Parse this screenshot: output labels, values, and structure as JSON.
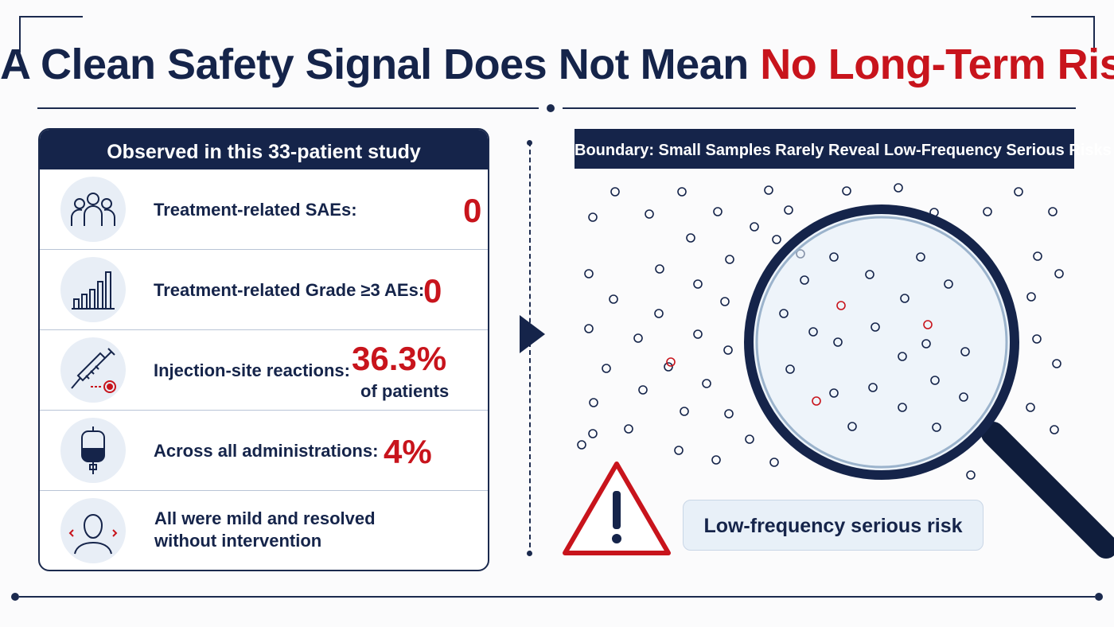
{
  "title": {
    "main": "A Clean Safety Signal Does Not Mean ",
    "accent": "No Long-Term Risk"
  },
  "left_panel": {
    "header": "Observed in this 33-patient study",
    "rows": [
      {
        "icon": "people-icon",
        "label": "Treatment-related SAEs:",
        "value": "0"
      },
      {
        "icon": "bar-chart-icon",
        "label": "Treatment-related Grade ≥3 AEs:",
        "value": "0"
      },
      {
        "icon": "syringe-icon",
        "label": "Injection-site reactions:",
        "value": "36.3%",
        "sub": "of patients"
      },
      {
        "icon": "iv-bag-icon",
        "label": "Across all administrations:",
        "value": "4%"
      },
      {
        "icon": "person-icon",
        "label_line1": "All were mild and resolved",
        "label_line2": "without intervention"
      }
    ]
  },
  "right_panel": {
    "header": "Boundary: Small Samples Rarely Reveal Low-Frequency Serious Risks",
    "risk_label": "Low-frequency serious risk",
    "icons": [
      "magnifier-icon",
      "warning-icon"
    ]
  },
  "colors": {
    "navy": "#15244a",
    "red": "#c8141c",
    "light": "#e8eef6"
  }
}
